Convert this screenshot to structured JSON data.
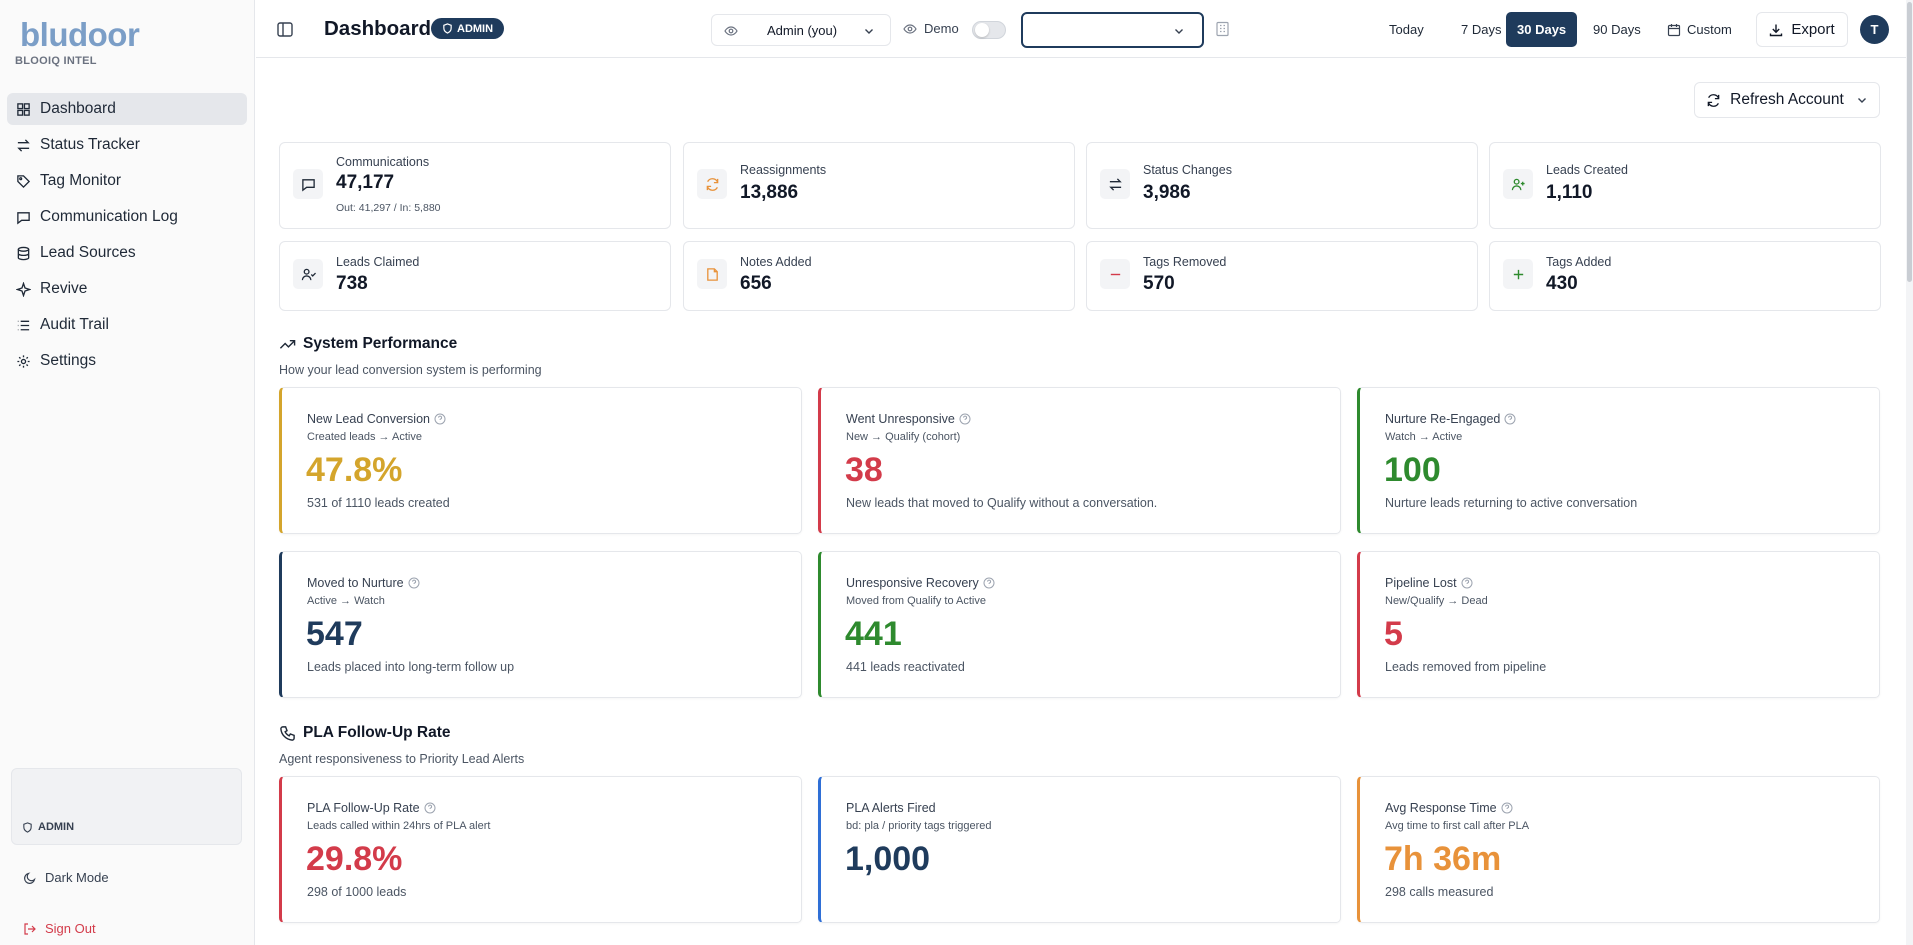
{
  "brand": {
    "logo": "bludoor",
    "subtitle": "BLOOIQ INTEL"
  },
  "sidebar": {
    "items": [
      {
        "label": "Dashboard",
        "icon": "grid-icon",
        "active": true
      },
      {
        "label": "Status Tracker",
        "icon": "arrows-exchange-icon"
      },
      {
        "label": "Tag Monitor",
        "icon": "tag-icon"
      },
      {
        "label": "Communication Log",
        "icon": "message-icon"
      },
      {
        "label": "Lead Sources",
        "icon": "database-icon"
      },
      {
        "label": "Revive",
        "icon": "sparkle-icon"
      },
      {
        "label": "Audit Trail",
        "icon": "list-icon"
      },
      {
        "label": "Settings",
        "icon": "gear-icon"
      }
    ],
    "role": "ADMIN",
    "dark_mode": "Dark Mode",
    "sign_out": "Sign Out"
  },
  "header": {
    "title": "Dashboard",
    "badge": "ADMIN",
    "view_as": "Admin (you)",
    "demo_label": "Demo",
    "ranges": [
      "Today",
      "7 Days",
      "30 Days",
      "90 Days"
    ],
    "selected_range": "30 Days",
    "custom": "Custom",
    "export": "Export",
    "avatar_initial": "T"
  },
  "refresh_label": "Refresh Account",
  "stats": [
    {
      "label": "Communications",
      "value": "47,177",
      "sub": "Out: 41,297 / In: 5,880",
      "icon": "message-icon"
    },
    {
      "label": "Reassignments",
      "value": "13,886",
      "icon": "refresh-icon"
    },
    {
      "label": "Status Changes",
      "value": "3,986",
      "icon": "arrows-exchange-icon"
    },
    {
      "label": "Leads Created",
      "value": "1,110",
      "icon": "user-plus-icon"
    },
    {
      "label": "Leads Claimed",
      "value": "738",
      "icon": "user-check-icon"
    },
    {
      "label": "Notes Added",
      "value": "656",
      "icon": "note-icon"
    },
    {
      "label": "Tags Removed",
      "value": "570",
      "icon": "minus-icon"
    },
    {
      "label": "Tags Added",
      "value": "430",
      "icon": "plus-icon"
    }
  ],
  "colors": {
    "yellow": "#d4a52c",
    "red": "#d33b4a",
    "green": "#2e8a2e",
    "navy": "#1f3b5c",
    "blue": "#2f6fd6",
    "orange": "#e8923a"
  },
  "system_performance": {
    "title": "System Performance",
    "subtitle": "How your lead conversion system is performing",
    "metrics": [
      {
        "label": "New Lead Conversion",
        "sub": "Created leads → Active",
        "value": "47.8%",
        "desc": "531 of 1110 leads created",
        "color": "#d4a52c"
      },
      {
        "label": "Went Unresponsive",
        "sub": "New → Qualify (cohort)",
        "value": "38",
        "desc": "New leads that moved to Qualify without a conversation.",
        "color": "#d33b4a"
      },
      {
        "label": "Nurture Re-Engaged",
        "sub": "Watch → Active",
        "value": "100",
        "desc": "Nurture leads returning to active conversation",
        "color": "#2e8a2e"
      },
      {
        "label": "Moved to Nurture",
        "sub": "Active → Watch",
        "value": "547",
        "desc": "Leads placed into long-term follow up",
        "color": "#1f3b5c"
      },
      {
        "label": "Unresponsive Recovery",
        "sub": "Moved from Qualify to Active",
        "value": "441",
        "desc": "441 leads reactivated",
        "color": "#2e8a2e"
      },
      {
        "label": "Pipeline Lost",
        "sub": "New/Qualify → Dead",
        "value": "5",
        "desc": "Leads removed from pipeline",
        "color": "#d33b4a"
      }
    ]
  },
  "pla": {
    "title": "PLA Follow-Up Rate",
    "subtitle": "Agent responsiveness to Priority Lead Alerts",
    "metrics": [
      {
        "label": "PLA Follow-Up Rate",
        "sub": "Leads called within 24hrs of PLA alert",
        "value": "29.8%",
        "desc": "298 of 1000 leads",
        "color": "#d33b4a",
        "help": true
      },
      {
        "label": "PLA Alerts Fired",
        "sub": "bd: pla / priority tags triggered",
        "value": "1,000",
        "desc": "",
        "color": "#1f3b5c",
        "help": false
      },
      {
        "label": "Avg Response Time",
        "sub": "Avg time to first call after PLA",
        "value": "7h 36m",
        "desc": "298 calls measured",
        "color": "#e8923a",
        "help": true
      }
    ]
  }
}
